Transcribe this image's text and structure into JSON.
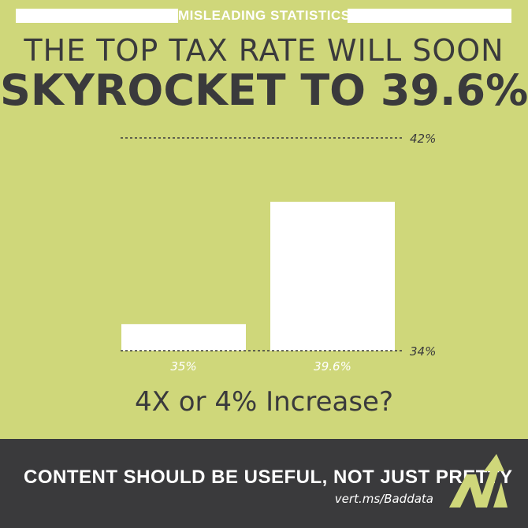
{
  "header": {
    "kicker": "MISLEADING STATISTICS",
    "headline_line1": "THE TOP TAX RATE WILL SOON",
    "headline_line2": "SKYROCKET TO 39.6%"
  },
  "chart_data": {
    "type": "bar",
    "categories": [
      "35%",
      "39.6%"
    ],
    "values": [
      35,
      39.6
    ],
    "ylim": [
      34,
      42
    ],
    "y_reference_labels": [
      "42%",
      "34%"
    ],
    "title": "",
    "xlabel": "",
    "ylabel": "",
    "bar_color": "#ffffff",
    "line_color": "#3a3a3c"
  },
  "question": "4X or 4% Increase?",
  "footer": {
    "tagline": "CONTENT SHOULD BE USEFUL, NOT JUST PRETTY",
    "url": "vert.ms/Baddata",
    "logo_icon": "vertical-measures-logo-icon"
  },
  "colors": {
    "background": "#cfd77a",
    "dark": "#3a3a3c",
    "white": "#ffffff"
  }
}
